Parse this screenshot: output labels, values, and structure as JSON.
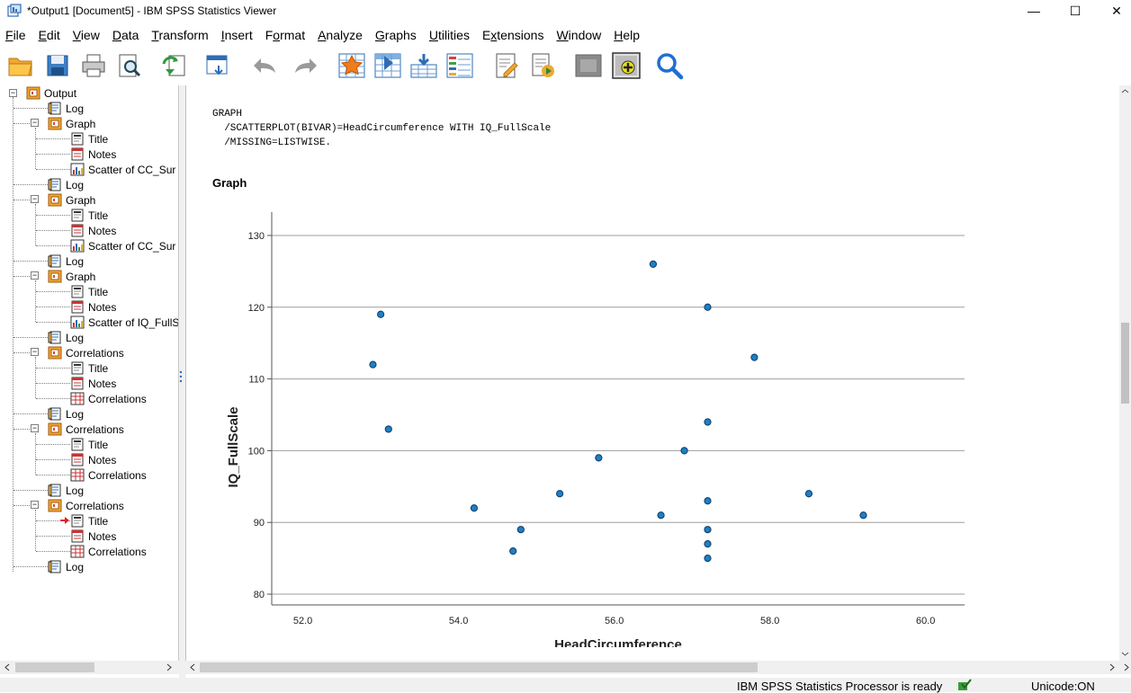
{
  "window": {
    "title": "*Output1 [Document5] - IBM SPSS Statistics Viewer",
    "minimize": "—",
    "maximize": "☐",
    "close": "✕"
  },
  "menu": [
    "File",
    "Edit",
    "View",
    "Data",
    "Transform",
    "Insert",
    "Format",
    "Analyze",
    "Graphs",
    "Utilities",
    "Extensions",
    "Window",
    "Help"
  ],
  "toolbar": {
    "icons": [
      "open-icon",
      "save-icon",
      "print-icon",
      "print-preview-icon",
      "export-icon",
      "recall-dialog-icon",
      "undo-icon",
      "redo-icon",
      "goto-case-icon",
      "goto-variable-icon",
      "insert-cases-icon",
      "variables-icon",
      "designate-window-icon",
      "run-script-icon",
      "show-all-icon",
      "create-edit-icon",
      "find-icon"
    ]
  },
  "tree": {
    "root": "Output",
    "items": [
      {
        "label": "Log",
        "level": 1,
        "icon": "log-icon"
      },
      {
        "label": "Graph",
        "level": 1,
        "icon": "folder-icon"
      },
      {
        "label": "Title",
        "level": 2,
        "icon": "title-icon"
      },
      {
        "label": "Notes",
        "level": 2,
        "icon": "notes-icon"
      },
      {
        "label": "Scatter of CC_Sur",
        "level": 2,
        "icon": "chart-icon"
      },
      {
        "label": "Log",
        "level": 1,
        "icon": "log-icon"
      },
      {
        "label": "Graph",
        "level": 1,
        "icon": "folder-icon"
      },
      {
        "label": "Title",
        "level": 2,
        "icon": "title-icon"
      },
      {
        "label": "Notes",
        "level": 2,
        "icon": "notes-icon"
      },
      {
        "label": "Scatter of CC_Sur",
        "level": 2,
        "icon": "chart-icon"
      },
      {
        "label": "Log",
        "level": 1,
        "icon": "log-icon"
      },
      {
        "label": "Graph",
        "level": 1,
        "icon": "folder-icon"
      },
      {
        "label": "Title",
        "level": 2,
        "icon": "title-icon"
      },
      {
        "label": "Notes",
        "level": 2,
        "icon": "notes-icon"
      },
      {
        "label": "Scatter of IQ_FullS",
        "level": 2,
        "icon": "chart-icon"
      },
      {
        "label": "Log",
        "level": 1,
        "icon": "log-icon"
      },
      {
        "label": "Correlations",
        "level": 1,
        "icon": "folder-icon"
      },
      {
        "label": "Title",
        "level": 2,
        "icon": "title-icon"
      },
      {
        "label": "Notes",
        "level": 2,
        "icon": "notes-icon"
      },
      {
        "label": "Correlations",
        "level": 2,
        "icon": "table-icon"
      },
      {
        "label": "Log",
        "level": 1,
        "icon": "log-icon"
      },
      {
        "label": "Correlations",
        "level": 1,
        "icon": "folder-icon"
      },
      {
        "label": "Title",
        "level": 2,
        "icon": "title-icon"
      },
      {
        "label": "Notes",
        "level": 2,
        "icon": "notes-icon"
      },
      {
        "label": "Correlations",
        "level": 2,
        "icon": "table-icon"
      },
      {
        "label": "Log",
        "level": 1,
        "icon": "log-icon"
      },
      {
        "label": "Correlations",
        "level": 1,
        "icon": "folder-icon"
      },
      {
        "label": "Title",
        "level": 2,
        "icon": "title-icon",
        "current": true
      },
      {
        "label": "Notes",
        "level": 2,
        "icon": "notes-icon"
      },
      {
        "label": "Correlations",
        "level": 2,
        "icon": "table-icon"
      },
      {
        "label": "Log",
        "level": 1,
        "icon": "log-icon"
      }
    ]
  },
  "content": {
    "syntax": "GRAPH\n  /SCATTERPLOT(BIVAR)=HeadCircumference WITH IQ_FullScale\n  /MISSING=LISTWISE.",
    "heading": "Graph"
  },
  "status": {
    "processor": "IBM SPSS Statistics Processor is ready",
    "unicode": "Unicode:ON"
  },
  "chart_data": {
    "type": "scatter",
    "xlabel": "HeadCircumference",
    "ylabel": "IQ_FullScale",
    "xlim": [
      51.6,
      60.5
    ],
    "ylim": [
      78.5,
      132.5
    ],
    "xticks": [
      52.0,
      54.0,
      56.0,
      58.0,
      60.0
    ],
    "xtick_labels": [
      "52.0",
      "54.0",
      "56.0",
      "58.0",
      "60.0"
    ],
    "yticks": [
      80,
      90,
      100,
      110,
      120,
      130
    ],
    "ytick_labels": [
      "80",
      "90",
      "100",
      "110",
      "120",
      "130"
    ],
    "grid": "horizontal",
    "marker_color": "#1f7fc4",
    "points": [
      {
        "x": 52.9,
        "y": 112
      },
      {
        "x": 53.0,
        "y": 119
      },
      {
        "x": 53.1,
        "y": 103
      },
      {
        "x": 54.2,
        "y": 92
      },
      {
        "x": 54.7,
        "y": 86
      },
      {
        "x": 54.8,
        "y": 89
      },
      {
        "x": 55.3,
        "y": 94
      },
      {
        "x": 55.8,
        "y": 99
      },
      {
        "x": 56.5,
        "y": 126
      },
      {
        "x": 56.6,
        "y": 91
      },
      {
        "x": 56.9,
        "y": 100
      },
      {
        "x": 57.2,
        "y": 120
      },
      {
        "x": 57.2,
        "y": 104
      },
      {
        "x": 57.2,
        "y": 93
      },
      {
        "x": 57.2,
        "y": 89
      },
      {
        "x": 57.2,
        "y": 87
      },
      {
        "x": 57.2,
        "y": 85
      },
      {
        "x": 57.8,
        "y": 113
      },
      {
        "x": 58.5,
        "y": 94
      },
      {
        "x": 59.2,
        "y": 91
      }
    ]
  }
}
